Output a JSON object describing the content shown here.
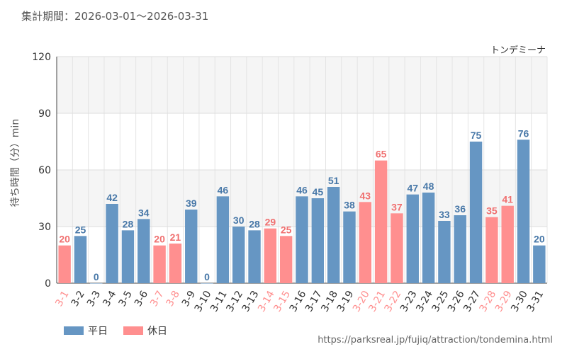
{
  "header": {
    "period": "集計期間：2026-03-01～2026-03-31"
  },
  "attraction_name": "トンデミーナ",
  "source_url": "https://parksreal.jp/fujiq/attraction/tondemina.html",
  "colors": {
    "weekday": "#6696c3",
    "holiday": "#ff8f8f",
    "weekday_label": "#4878a8",
    "holiday_label": "#f07070"
  },
  "chart_data": {
    "type": "bar",
    "ylabel": "待ち時間（分）min",
    "ylim": [
      0,
      120
    ],
    "yticks": [
      0,
      30,
      60,
      90,
      120
    ],
    "categories": [
      "3-1",
      "3-2",
      "3-3",
      "3-4",
      "3-5",
      "3-6",
      "3-7",
      "3-8",
      "3-9",
      "3-10",
      "3-11",
      "3-12",
      "3-13",
      "3-14",
      "3-15",
      "3-16",
      "3-17",
      "3-18",
      "3-19",
      "3-20",
      "3-21",
      "3-22",
      "3-23",
      "3-24",
      "3-25",
      "3-26",
      "3-27",
      "3-28",
      "3-29",
      "3-30",
      "3-31"
    ],
    "values": [
      20,
      25,
      0,
      42,
      28,
      34,
      20,
      21,
      39,
      0,
      46,
      30,
      28,
      29,
      25,
      46,
      45,
      51,
      38,
      43,
      65,
      37,
      47,
      48,
      33,
      36,
      75,
      35,
      41,
      76,
      20
    ],
    "day_type": [
      "holiday",
      "weekday",
      "weekday",
      "weekday",
      "weekday",
      "weekday",
      "holiday",
      "holiday",
      "weekday",
      "weekday",
      "weekday",
      "weekday",
      "weekday",
      "holiday",
      "holiday",
      "weekday",
      "weekday",
      "weekday",
      "weekday",
      "holiday",
      "holiday",
      "holiday",
      "weekday",
      "weekday",
      "weekday",
      "weekday",
      "weekday",
      "holiday",
      "holiday",
      "weekday",
      "weekday"
    ],
    "legend": [
      {
        "key": "weekday",
        "label": "平日"
      },
      {
        "key": "holiday",
        "label": "休日"
      }
    ],
    "grid": true
  }
}
